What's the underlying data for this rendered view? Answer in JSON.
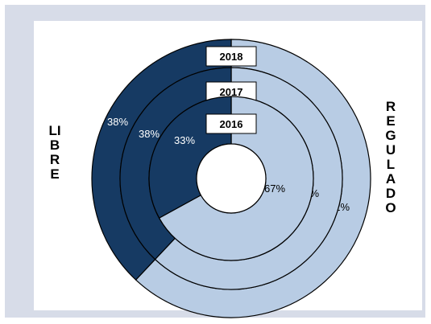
{
  "chart_data": {
    "type": "donut",
    "categories": [
      "LIBRE",
      "REGULADO"
    ],
    "colors": {
      "LIBRE": "#163a63",
      "REGULADO": "#b8cce4"
    },
    "series": [
      {
        "name": "2018",
        "values": [
          38,
          62
        ],
        "labels": [
          "38%",
          "62%"
        ]
      },
      {
        "name": "2017",
        "values": [
          38,
          62
        ],
        "labels": [
          "38%",
          "62%"
        ]
      },
      {
        "name": "2016",
        "values": [
          33,
          67
        ],
        "labels": [
          "33%",
          "67%"
        ]
      }
    ],
    "left_label": "LIBRE",
    "right_label": "REGULADO"
  }
}
